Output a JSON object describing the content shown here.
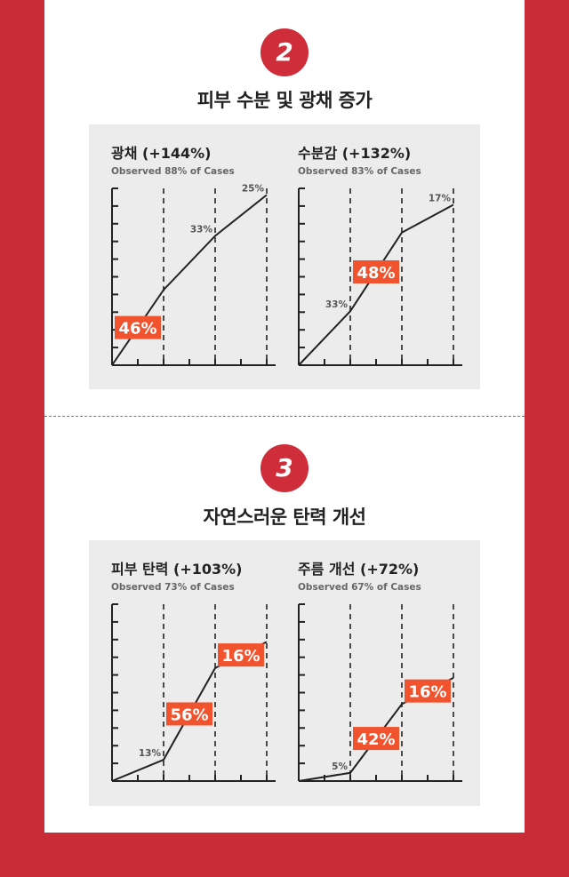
{
  "sections": [
    {
      "number": "2",
      "title": "피부 수분 및 광채 증가"
    },
    {
      "number": "3",
      "title": "자연스러운 탄력 개선"
    }
  ],
  "colors": {
    "background": "#c92b37",
    "badge": "#cf2d3a",
    "panel": "#ececec",
    "highlight": "#f2532f",
    "line": "#222222"
  },
  "chart_data": [
    {
      "type": "line",
      "title": "광채 (+144%)",
      "subtitle": "Observed 88% of Cases",
      "x": [
        0,
        1,
        2,
        3
      ],
      "y": [
        0,
        46,
        79,
        104
      ],
      "ylim": [
        0,
        108
      ],
      "labels": [
        {
          "text": "46%",
          "segment": 1,
          "highlight": true
        },
        {
          "text": "33%",
          "segment": 2,
          "highlight": false
        },
        {
          "text": "25%",
          "segment": 3,
          "highlight": false
        }
      ]
    },
    {
      "type": "line",
      "title": "수분감 (+132%)",
      "subtitle": "Observed 83% of Cases",
      "x": [
        0,
        1,
        2,
        3
      ],
      "y": [
        0,
        33,
        81,
        98
      ],
      "ylim": [
        0,
        108
      ],
      "labels": [
        {
          "text": "33%",
          "segment": 1,
          "highlight": false
        },
        {
          "text": "48%",
          "segment": 2,
          "highlight": true
        },
        {
          "text": "17%",
          "segment": 3,
          "highlight": false
        }
      ]
    },
    {
      "type": "line",
      "title": "피부 탄력 (+103%)",
      "subtitle": "Observed 73% of Cases",
      "x": [
        0,
        1,
        2,
        3
      ],
      "y": [
        0,
        13,
        69,
        85
      ],
      "ylim": [
        0,
        108
      ],
      "labels": [
        {
          "text": "13%",
          "segment": 1,
          "highlight": false
        },
        {
          "text": "56%",
          "segment": 2,
          "highlight": true
        },
        {
          "text": "16%",
          "segment": 3,
          "highlight": true
        }
      ]
    },
    {
      "type": "line",
      "title": "주름 개선 (+72%)",
      "subtitle": "Observed 67% of Cases",
      "x": [
        0,
        1,
        2,
        3
      ],
      "y": [
        0,
        5,
        47,
        63
      ],
      "ylim": [
        0,
        108
      ],
      "labels": [
        {
          "text": "5%",
          "segment": 1,
          "highlight": false
        },
        {
          "text": "42%",
          "segment": 2,
          "highlight": true
        },
        {
          "text": "16%",
          "segment": 3,
          "highlight": true
        }
      ]
    }
  ]
}
